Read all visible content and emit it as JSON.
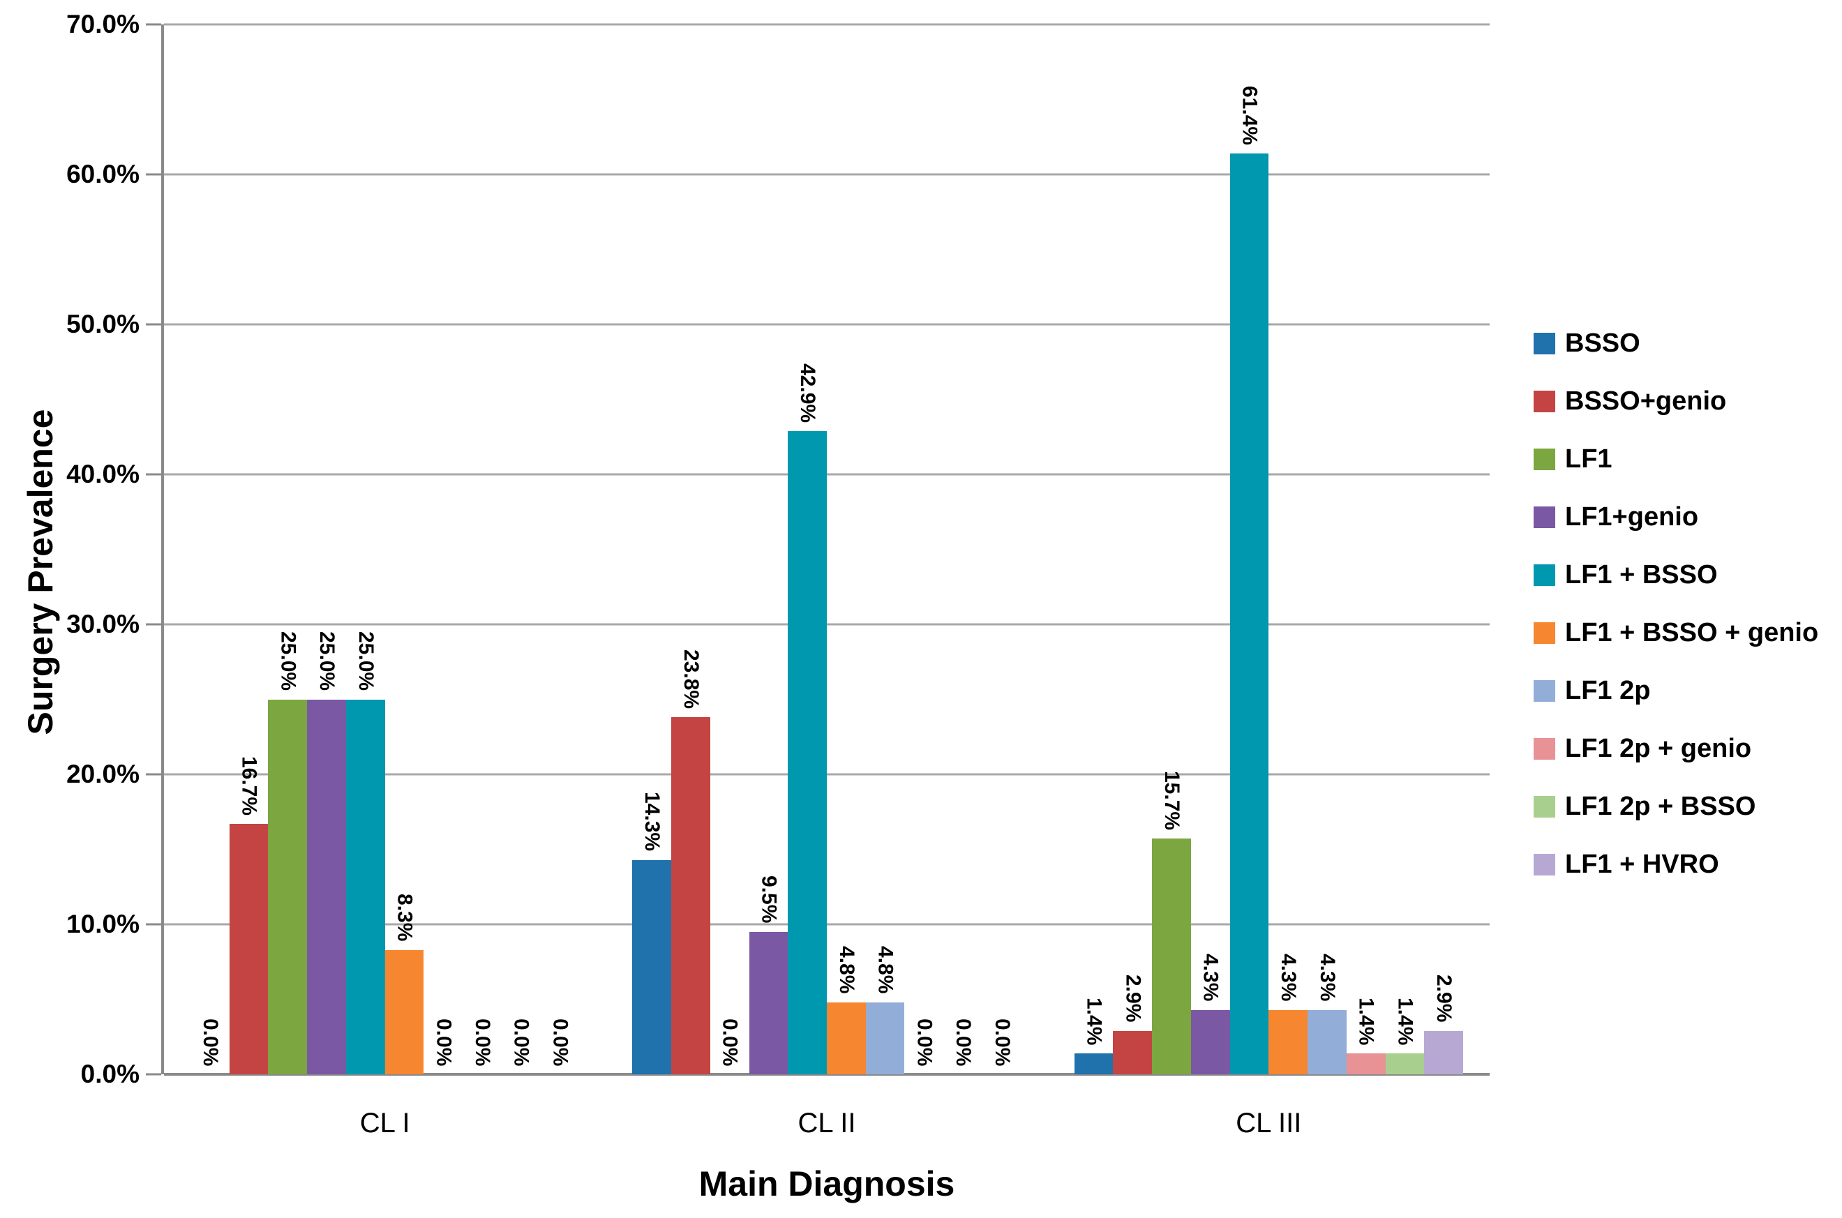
{
  "chart_data": {
    "type": "bar",
    "title": "",
    "xlabel": "Main Diagnosis",
    "ylabel": "Surgery Prevalence",
    "categories": [
      "CL I",
      "CL II",
      "CL III"
    ],
    "series": [
      {
        "name": "BSSO",
        "color": "#1F72AC",
        "values": [
          0.0,
          14.3,
          1.4
        ]
      },
      {
        "name": "BSSO+genio",
        "color": "#C34442",
        "values": [
          16.7,
          23.8,
          2.9
        ]
      },
      {
        "name": "LF1",
        "color": "#7CA63F",
        "values": [
          25.0,
          0.0,
          15.7
        ]
      },
      {
        "name": "LF1+genio",
        "color": "#7A58A3",
        "values": [
          25.0,
          9.5,
          4.3
        ]
      },
      {
        "name": "LF1 + BSSO",
        "color": "#0098AE",
        "values": [
          25.0,
          42.9,
          61.4
        ]
      },
      {
        "name": "LF1 + BSSO + genio",
        "color": "#F6862F",
        "values": [
          8.3,
          4.8,
          4.3
        ]
      },
      {
        "name": "LF1 2p",
        "color": "#92AED8",
        "values": [
          0.0,
          4.8,
          4.3
        ]
      },
      {
        "name": "LF1 2p + genio",
        "color": "#E89295",
        "values": [
          0.0,
          0.0,
          1.4
        ]
      },
      {
        "name": "LF1 2p + BSSO",
        "color": "#A9CF8E",
        "values": [
          0.0,
          0.0,
          1.4
        ]
      },
      {
        "name": "LF1 + HVRO",
        "color": "#B7A8D3",
        "values": [
          0.0,
          0.0,
          2.9
        ]
      }
    ],
    "y_ticks": [
      "70.0%",
      "60.0%",
      "50.0%",
      "40.0%",
      "30.0%",
      "20.0%",
      "10.0%",
      "0.0%"
    ],
    "ylim": [
      0,
      70
    ],
    "grid": true,
    "legend_position": "right",
    "data_label_suffix": "%"
  },
  "colors": {
    "grid": "#A8A8A8",
    "axis": "#8A8A8A",
    "text": "#000000",
    "background": "#FFFFFF"
  }
}
